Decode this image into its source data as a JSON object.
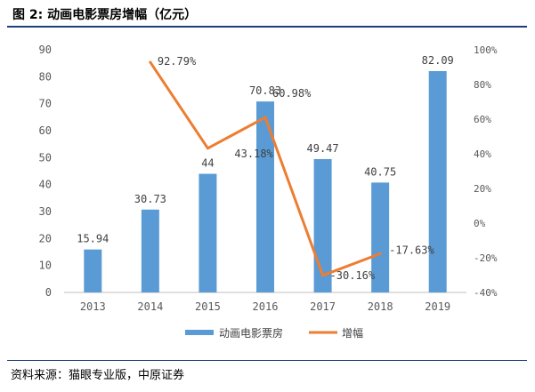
{
  "figure": {
    "title": "图 2:  动画电影票房增幅（亿元）",
    "source": "资料来源：猫眼专业版，中原证券"
  },
  "chart_data": {
    "type": "bar+line",
    "categories": [
      "2013",
      "2014",
      "2015",
      "2016",
      "2017",
      "2018",
      "2019"
    ],
    "series": [
      {
        "name": "动画电影票房",
        "type": "bar",
        "axis": "left",
        "color": "#5b9bd5",
        "values": [
          15.94,
          30.73,
          44,
          70.83,
          49.47,
          40.75,
          82.09
        ],
        "labels": [
          "15.94",
          "30.73",
          "44",
          "70.83",
          "49.47",
          "40.75",
          "82.09"
        ]
      },
      {
        "name": "增幅",
        "type": "line",
        "axis": "right",
        "color": "#ed7d31",
        "values": [
          null,
          92.79,
          43.18,
          60.98,
          -30.16,
          -17.63,
          null
        ],
        "labels": [
          null,
          "92.79%",
          "43.18%",
          "60.98%",
          "-30.16%",
          "-17.63%",
          null
        ]
      }
    ],
    "y_left": {
      "min": 0,
      "max": 90,
      "ticks": [
        "0",
        "10",
        "20",
        "30",
        "40",
        "50",
        "60",
        "70",
        "80",
        "90"
      ]
    },
    "y_right": {
      "min": -40,
      "max": 100,
      "ticks": [
        "-40%",
        "-20%",
        "0%",
        "20%",
        "40%",
        "60%",
        "80%",
        "100%"
      ]
    },
    "legend": {
      "position": "bottom",
      "items": [
        "动画电影票房",
        "增幅"
      ]
    }
  }
}
